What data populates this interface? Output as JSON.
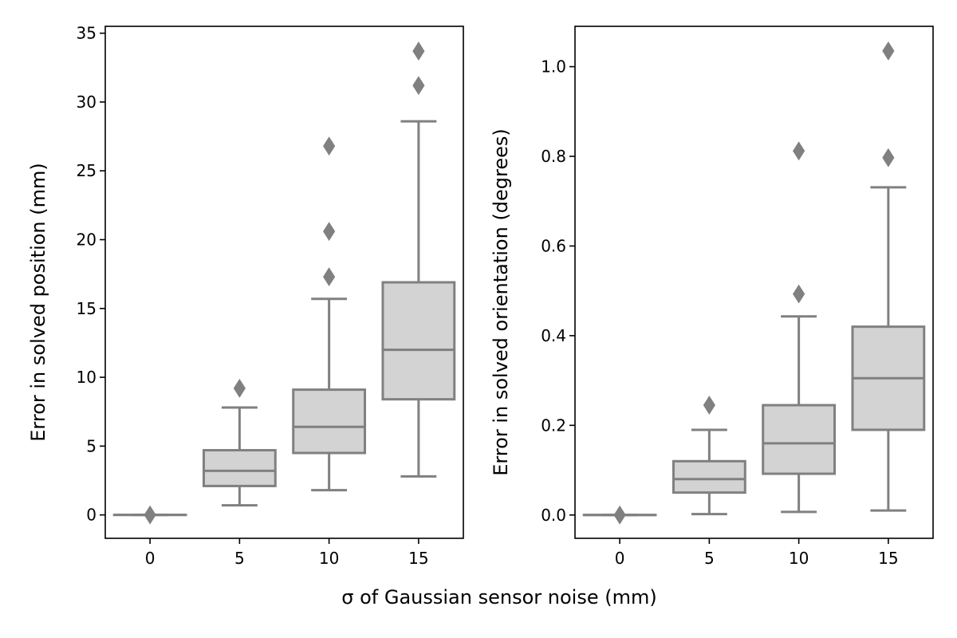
{
  "figure": {
    "shared_xlabel": "σ of Gaussian sensor noise (mm)"
  },
  "chart_data": [
    {
      "type": "box",
      "ylabel": "Error in solved position (mm)",
      "xlabel": "",
      "categories": [
        "0",
        "5",
        "10",
        "15"
      ],
      "ylim": [
        -1.7,
        35.5
      ],
      "yticks": [
        0,
        5,
        10,
        15,
        20,
        25,
        30,
        35
      ],
      "ytick_labels": [
        "0",
        "5",
        "10",
        "15",
        "20",
        "25",
        "30",
        "35"
      ],
      "grid": false,
      "box_color": "#d3d3d3",
      "line_color": "#808080",
      "boxes": [
        {
          "category": "0",
          "whisker_low": 0.0,
          "q1": 0.0,
          "median": 0.0,
          "q3": 0.0,
          "whisker_high": 0.0,
          "outliers": [
            0.0
          ]
        },
        {
          "category": "5",
          "whisker_low": 0.7,
          "q1": 2.1,
          "median": 3.2,
          "q3": 4.7,
          "whisker_high": 7.8,
          "outliers": [
            9.2
          ]
        },
        {
          "category": "10",
          "whisker_low": 1.8,
          "q1": 4.5,
          "median": 6.4,
          "q3": 9.1,
          "whisker_high": 15.7,
          "outliers": [
            17.3,
            20.6,
            26.8
          ]
        },
        {
          "category": "15",
          "whisker_low": 2.8,
          "q1": 8.4,
          "median": 12.0,
          "q3": 16.9,
          "whisker_high": 28.6,
          "outliers": [
            31.2,
            33.7
          ]
        }
      ]
    },
    {
      "type": "box",
      "ylabel": "Error in solved orientation (degrees)",
      "xlabel": "",
      "categories": [
        "0",
        "5",
        "10",
        "15"
      ],
      "ylim": [
        -0.052,
        1.09
      ],
      "yticks": [
        0.0,
        0.2,
        0.4,
        0.6,
        0.8,
        1.0
      ],
      "ytick_labels": [
        "0.0",
        "0.2",
        "0.4",
        "0.6",
        "0.8",
        "1.0"
      ],
      "grid": false,
      "box_color": "#d3d3d3",
      "line_color": "#808080",
      "boxes": [
        {
          "category": "0",
          "whisker_low": 0.0,
          "q1": 0.0,
          "median": 0.0,
          "q3": 0.0,
          "whisker_high": 0.0,
          "outliers": [
            0.0
          ]
        },
        {
          "category": "5",
          "whisker_low": 0.002,
          "q1": 0.05,
          "median": 0.08,
          "q3": 0.12,
          "whisker_high": 0.19,
          "outliers": [
            0.245
          ]
        },
        {
          "category": "10",
          "whisker_low": 0.007,
          "q1": 0.092,
          "median": 0.16,
          "q3": 0.245,
          "whisker_high": 0.443,
          "outliers": [
            0.493,
            0.812
          ]
        },
        {
          "category": "15",
          "whisker_low": 0.01,
          "q1": 0.19,
          "median": 0.305,
          "q3": 0.42,
          "whisker_high": 0.731,
          "outliers": [
            0.797,
            1.035
          ]
        }
      ]
    }
  ]
}
